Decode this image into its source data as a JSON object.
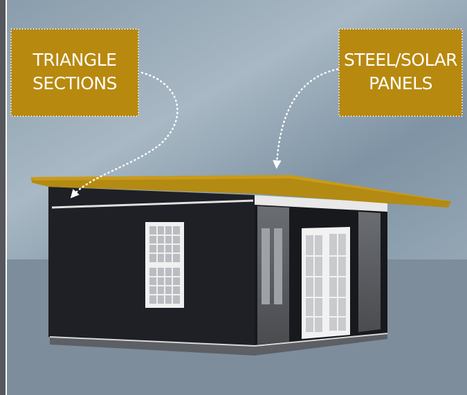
{
  "callouts": [
    {
      "lines": [
        "TRIANGLE",
        "SECTIONS"
      ]
    },
    {
      "lines": [
        "STEEL/SOLAR",
        "PANELS"
      ]
    }
  ]
}
